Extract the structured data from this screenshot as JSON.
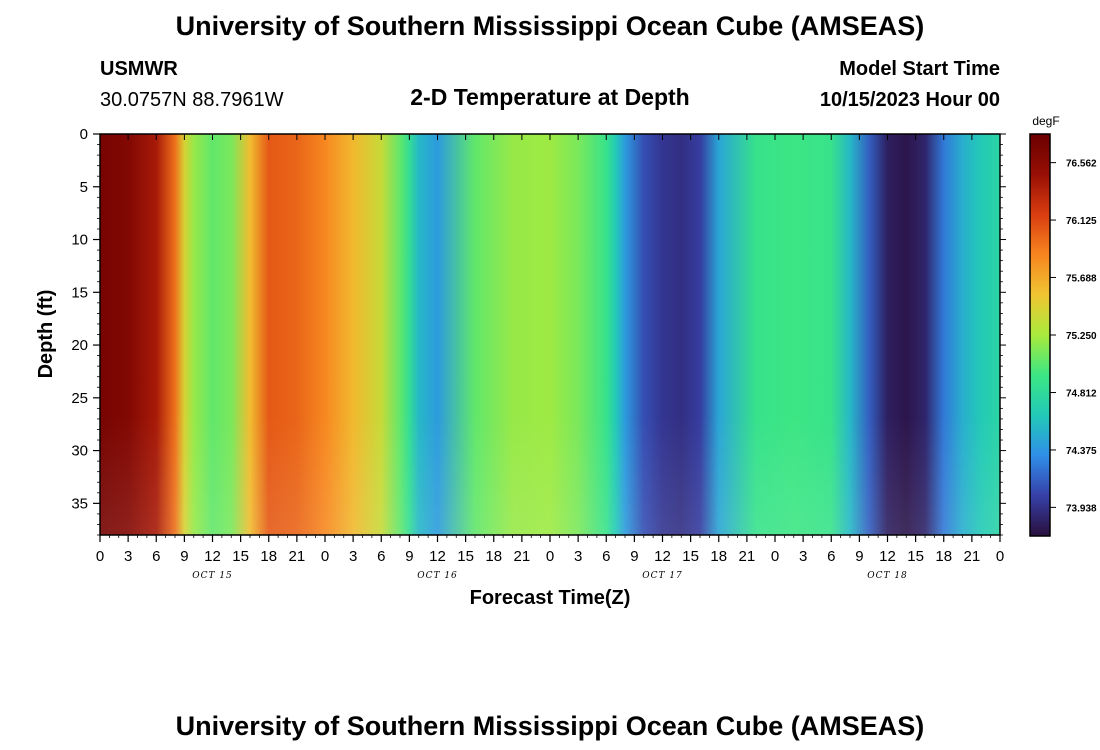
{
  "page": {
    "title": "University of Southern Mississippi Ocean Cube (AMSEAS)",
    "footer_title": "University of Southern Mississippi Ocean Cube (AMSEAS)",
    "station": "USMWR",
    "location": "30.0757N  88.7961W",
    "subtitle": "2-D Temperature at Depth",
    "model_label": "Model Start Time",
    "model_time": "10/15/2023 Hour 00"
  },
  "chart_data": {
    "type": "heatmap",
    "title": "2-D Temperature at Depth",
    "xlabel": "Forecast Time(Z)",
    "ylabel": "Depth (ft)",
    "x_range_hours": [
      0,
      96
    ],
    "x_ticks": [
      "0",
      "3",
      "6",
      "9",
      "12",
      "15",
      "18",
      "21",
      "0",
      "3",
      "6",
      "9",
      "12",
      "15",
      "18",
      "21",
      "0",
      "3",
      "6",
      "9",
      "12",
      "15",
      "18",
      "21",
      "0",
      "3",
      "6",
      "9",
      "12",
      "15",
      "18",
      "21",
      "0"
    ],
    "x_date_labels": [
      {
        "label": "OCT 15",
        "hour": 12
      },
      {
        "label": "OCT 16",
        "hour": 36
      },
      {
        "label": "OCT 17",
        "hour": 60
      },
      {
        "label": "OCT 18",
        "hour": 84
      }
    ],
    "ylim": [
      38,
      0
    ],
    "y_ticks": [
      "0",
      "5",
      "10",
      "15",
      "20",
      "25",
      "30",
      "35"
    ],
    "colorbar": {
      "unit": "degF",
      "range": [
        73.72,
        76.78
      ],
      "ticks": [
        "76.562",
        "76.125",
        "75.688",
        "75.250",
        "74.812",
        "74.375",
        "73.938"
      ],
      "colors": [
        "#2a0f3d",
        "#3640a8",
        "#2f8ee8",
        "#22c9b8",
        "#3be684",
        "#a9ea3c",
        "#f0c532",
        "#f7851f",
        "#d93d10",
        "#970f05",
        "#6a0000"
      ]
    },
    "series": [
      {
        "hours": [
          0,
          3,
          6,
          8,
          9,
          10,
          12,
          14,
          16,
          18,
          21,
          24,
          27,
          30,
          32,
          33,
          34,
          36,
          40,
          44,
          48,
          51,
          54,
          55,
          56,
          58,
          60,
          62,
          64,
          66,
          70,
          74,
          78,
          80,
          82,
          84,
          86,
          88,
          90,
          92,
          94,
          96
        ],
        "temp_degF": [
          76.7,
          76.62,
          76.4,
          75.95,
          75.45,
          75.2,
          75.05,
          75.12,
          75.6,
          76.05,
          76.0,
          75.85,
          75.62,
          75.38,
          75.05,
          74.85,
          74.55,
          74.4,
          75.05,
          75.2,
          75.22,
          75.12,
          74.9,
          74.65,
          74.4,
          74.08,
          73.96,
          73.92,
          74.0,
          74.45,
          74.9,
          74.95,
          74.9,
          74.55,
          74.15,
          73.82,
          73.76,
          73.85,
          74.25,
          74.5,
          74.65,
          74.75
        ]
      }
    ]
  }
}
